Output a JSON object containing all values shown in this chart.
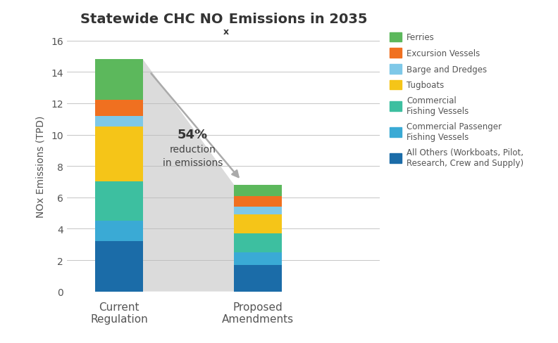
{
  "title_main": "Statewide CHC NO",
  "title_sub": "x",
  "title_end": " Emissions in 2035",
  "ylabel": "NOx Emissions (TPD)",
  "categories": [
    "Current\nRegulation",
    "Proposed\nAmendments"
  ],
  "segments": [
    {
      "label": "All Others (Workboats, Pilot,\nResearch, Crew and Supply)",
      "color": "#1b6ca8",
      "values": [
        3.2,
        1.7
      ]
    },
    {
      "label": "Commercial Passenger\nFishing Vessels",
      "color": "#3aaad5",
      "values": [
        1.3,
        0.8
      ]
    },
    {
      "label": "Commercial\nFishing Vessels",
      "color": "#3dbfa0",
      "values": [
        2.5,
        1.2
      ]
    },
    {
      "label": "Tugboats",
      "color": "#f5c518",
      "values": [
        3.5,
        1.2
      ]
    },
    {
      "label": "Barge and Dredges",
      "color": "#7ec8e8",
      "values": [
        0.7,
        0.5
      ]
    },
    {
      "label": "Excursion Vessels",
      "color": "#f07020",
      "values": [
        1.0,
        0.7
      ]
    },
    {
      "label": "Ferries",
      "color": "#5cb85c",
      "values": [
        2.6,
        0.7
      ]
    }
  ],
  "ylim": [
    0,
    16
  ],
  "yticks": [
    0,
    2,
    4,
    6,
    8,
    10,
    12,
    14,
    16
  ],
  "annotation_pct": "54%",
  "annotation_rest": "reduction\nin emissions",
  "bar_width": 0.55,
  "x_positions": [
    0.8,
    2.4
  ],
  "xlim": [
    0.2,
    3.8
  ],
  "background_color": "#ffffff",
  "grid_color": "#bbbbbb",
  "text_color": "#555555",
  "legend_labels": [
    "Ferries",
    "Excursion Vessels",
    "Barge and Dredges",
    "Tugboats",
    "Commercial\nFishing Vessels",
    "Commercial Passenger\nFishing Vessels",
    "All Others (Workboats, Pilot,\nResearch, Crew and Supply)"
  ]
}
